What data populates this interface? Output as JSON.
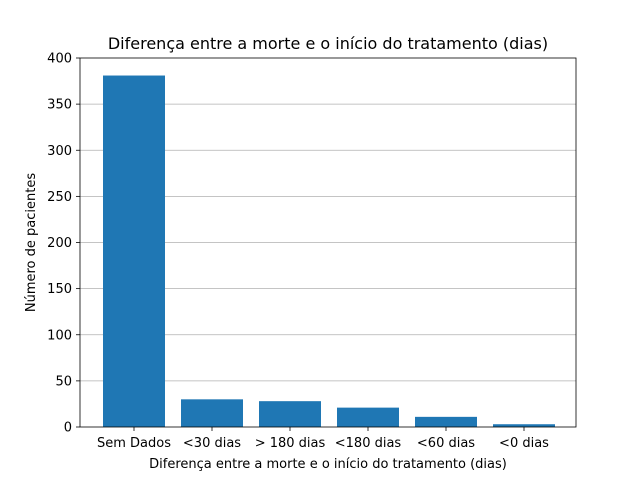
{
  "chart_data": {
    "type": "bar",
    "title": "Diferença entre a morte e o início do tratamento (dias)",
    "xlabel": "Diferença entre a morte e o início do tratamento (dias)",
    "ylabel": "Número de pacientes",
    "categories": [
      "Sem Dados",
      "<30 dias",
      "> 180 dias",
      "<180 dias",
      "<60 dias",
      "<0 dias"
    ],
    "values": [
      381,
      30,
      28,
      21,
      11,
      3
    ],
    "ylim": [
      0,
      400
    ],
    "yticks": [
      0,
      50,
      100,
      150,
      200,
      250,
      300,
      350,
      400
    ],
    "grid": "y-major",
    "bar_color": "#1f77b4"
  }
}
